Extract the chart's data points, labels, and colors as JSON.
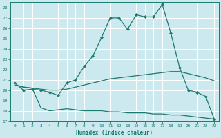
{
  "xlabel": "Humidex (Indice chaleur)",
  "ylabel": "",
  "xlim": [
    -0.5,
    23.5
  ],
  "ylim": [
    17,
    28.5
  ],
  "yticks": [
    17,
    18,
    19,
    20,
    21,
    22,
    23,
    24,
    25,
    26,
    27,
    28
  ],
  "xticks": [
    0,
    1,
    2,
    3,
    4,
    5,
    6,
    7,
    8,
    9,
    10,
    11,
    12,
    13,
    14,
    15,
    16,
    17,
    18,
    19,
    20,
    21,
    22,
    23
  ],
  "bg_color": "#cce9f0",
  "line_color": "#1a7a6e",
  "grid_color": "#ffffff",
  "line1_y": [
    20.7,
    20.0,
    20.1,
    20.0,
    19.8,
    19.5,
    20.7,
    21.0,
    22.3,
    23.3,
    25.1,
    27.0,
    27.0,
    25.9,
    27.3,
    27.1,
    27.1,
    28.3,
    25.5,
    22.2,
    20.0,
    19.8,
    19.4,
    17.2
  ],
  "line2_y": [
    20.5,
    20.3,
    20.2,
    20.1,
    20.0,
    20.0,
    20.1,
    20.3,
    20.5,
    20.7,
    20.9,
    21.1,
    21.2,
    21.3,
    21.4,
    21.5,
    21.6,
    21.7,
    21.8,
    21.8,
    21.6,
    21.4,
    21.2,
    20.9
  ],
  "line3_y": [
    20.5,
    20.3,
    20.2,
    18.3,
    18.0,
    18.1,
    18.2,
    18.1,
    18.0,
    18.0,
    18.0,
    17.9,
    17.9,
    17.8,
    17.8,
    17.8,
    17.7,
    17.7,
    17.6,
    17.6,
    17.5,
    17.4,
    17.3,
    17.2
  ]
}
